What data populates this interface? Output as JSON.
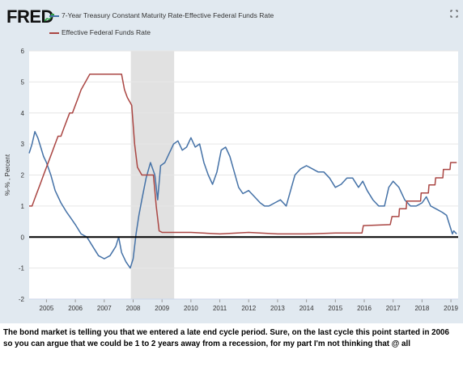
{
  "brand": {
    "logo_text": "FRED"
  },
  "legend": [
    {
      "label": "7-Year Treasury Constant Maturity Rate-Effective Federal Funds Rate",
      "color": "#4572a7"
    },
    {
      "label": "Effective Federal Funds Rate",
      "color": "#aa4643"
    }
  ],
  "icons": {
    "fullscreen": "expand-icon"
  },
  "caption": "The bond market is telling you that we entered a late end cycle period. Sure, on the last cycle this point started in 2006 so you can argue that we could be 1 to 2 years away from a recession, for my part I'm not thinking that @ all",
  "chart_data": {
    "type": "line",
    "title": "",
    "xlabel": "",
    "ylabel": "%-% , Percent",
    "xlim": [
      2004.4,
      2019.25
    ],
    "ylim": [
      -2,
      6
    ],
    "yticks": [
      -2,
      -1,
      0,
      1,
      2,
      3,
      4,
      5,
      6
    ],
    "xticks": [
      2005,
      2006,
      2007,
      2008,
      2009,
      2010,
      2011,
      2012,
      2013,
      2014,
      2015,
      2016,
      2017,
      2018,
      2019
    ],
    "zero_line": true,
    "recession_shading": [
      [
        2007.92,
        2009.42
      ]
    ],
    "grid": "horizontal",
    "series": [
      {
        "name": "7-Year Treasury Constant Maturity Rate-Effective Federal Funds Rate",
        "color": "#4572a7",
        "points": [
          [
            2004.4,
            2.7
          ],
          [
            2004.5,
            3.0
          ],
          [
            2004.6,
            3.4
          ],
          [
            2004.7,
            3.2
          ],
          [
            2004.8,
            2.9
          ],
          [
            2004.9,
            2.6
          ],
          [
            2005.0,
            2.4
          ],
          [
            2005.15,
            2.0
          ],
          [
            2005.3,
            1.5
          ],
          [
            2005.5,
            1.1
          ],
          [
            2005.7,
            0.8
          ],
          [
            2005.85,
            0.6
          ],
          [
            2006.0,
            0.4
          ],
          [
            2006.2,
            0.1
          ],
          [
            2006.4,
            0.0
          ],
          [
            2006.6,
            -0.3
          ],
          [
            2006.8,
            -0.6
          ],
          [
            2007.0,
            -0.7
          ],
          [
            2007.2,
            -0.6
          ],
          [
            2007.4,
            -0.3
          ],
          [
            2007.5,
            0.0
          ],
          [
            2007.6,
            -0.5
          ],
          [
            2007.75,
            -0.8
          ],
          [
            2007.9,
            -1.0
          ],
          [
            2008.0,
            -0.7
          ],
          [
            2008.1,
            0.1
          ],
          [
            2008.2,
            0.7
          ],
          [
            2008.3,
            1.2
          ],
          [
            2008.45,
            1.9
          ],
          [
            2008.6,
            2.4
          ],
          [
            2008.75,
            2.0
          ],
          [
            2008.85,
            1.2
          ],
          [
            2008.95,
            2.3
          ],
          [
            2009.1,
            2.4
          ],
          [
            2009.25,
            2.7
          ],
          [
            2009.4,
            3.0
          ],
          [
            2009.55,
            3.1
          ],
          [
            2009.7,
            2.8
          ],
          [
            2009.85,
            2.9
          ],
          [
            2010.0,
            3.2
          ],
          [
            2010.15,
            2.9
          ],
          [
            2010.3,
            3.0
          ],
          [
            2010.45,
            2.4
          ],
          [
            2010.6,
            2.0
          ],
          [
            2010.75,
            1.7
          ],
          [
            2010.9,
            2.1
          ],
          [
            2011.05,
            2.8
          ],
          [
            2011.2,
            2.9
          ],
          [
            2011.35,
            2.6
          ],
          [
            2011.5,
            2.1
          ],
          [
            2011.65,
            1.6
          ],
          [
            2011.8,
            1.4
          ],
          [
            2012.0,
            1.5
          ],
          [
            2012.2,
            1.3
          ],
          [
            2012.4,
            1.1
          ],
          [
            2012.55,
            1.0
          ],
          [
            2012.7,
            1.0
          ],
          [
            2012.9,
            1.1
          ],
          [
            2013.1,
            1.2
          ],
          [
            2013.3,
            1.0
          ],
          [
            2013.45,
            1.5
          ],
          [
            2013.6,
            2.0
          ],
          [
            2013.8,
            2.2
          ],
          [
            2014.0,
            2.3
          ],
          [
            2014.2,
            2.2
          ],
          [
            2014.4,
            2.1
          ],
          [
            2014.6,
            2.1
          ],
          [
            2014.8,
            1.9
          ],
          [
            2015.0,
            1.6
          ],
          [
            2015.2,
            1.7
          ],
          [
            2015.4,
            1.9
          ],
          [
            2015.6,
            1.9
          ],
          [
            2015.8,
            1.6
          ],
          [
            2015.95,
            1.8
          ],
          [
            2016.1,
            1.5
          ],
          [
            2016.3,
            1.2
          ],
          [
            2016.5,
            1.0
          ],
          [
            2016.7,
            1.0
          ],
          [
            2016.85,
            1.6
          ],
          [
            2017.0,
            1.8
          ],
          [
            2017.2,
            1.6
          ],
          [
            2017.4,
            1.2
          ],
          [
            2017.6,
            1.0
          ],
          [
            2017.8,
            1.0
          ],
          [
            2018.0,
            1.1
          ],
          [
            2018.15,
            1.3
          ],
          [
            2018.3,
            1.0
          ],
          [
            2018.5,
            0.9
          ],
          [
            2018.7,
            0.8
          ],
          [
            2018.85,
            0.7
          ],
          [
            2018.95,
            0.4
          ],
          [
            2019.05,
            0.1
          ],
          [
            2019.1,
            0.2
          ],
          [
            2019.2,
            0.1
          ]
        ]
      },
      {
        "name": "Effective Federal Funds Rate",
        "color": "#aa4643",
        "points": [
          [
            2004.4,
            1.0
          ],
          [
            2004.5,
            1.0
          ],
          [
            2004.6,
            1.25
          ],
          [
            2004.7,
            1.5
          ],
          [
            2004.8,
            1.75
          ],
          [
            2004.9,
            2.0
          ],
          [
            2005.0,
            2.25
          ],
          [
            2005.1,
            2.5
          ],
          [
            2005.2,
            2.75
          ],
          [
            2005.3,
            3.0
          ],
          [
            2005.4,
            3.25
          ],
          [
            2005.5,
            3.25
          ],
          [
            2005.6,
            3.5
          ],
          [
            2005.7,
            3.75
          ],
          [
            2005.8,
            4.0
          ],
          [
            2005.9,
            4.0
          ],
          [
            2006.0,
            4.25
          ],
          [
            2006.1,
            4.5
          ],
          [
            2006.2,
            4.75
          ],
          [
            2006.35,
            5.0
          ],
          [
            2006.5,
            5.25
          ],
          [
            2007.0,
            5.25
          ],
          [
            2007.5,
            5.25
          ],
          [
            2007.6,
            5.25
          ],
          [
            2007.7,
            4.75
          ],
          [
            2007.8,
            4.5
          ],
          [
            2007.95,
            4.25
          ],
          [
            2008.05,
            3.0
          ],
          [
            2008.15,
            2.25
          ],
          [
            2008.3,
            2.0
          ],
          [
            2008.7,
            2.0
          ],
          [
            2008.75,
            1.5
          ],
          [
            2008.8,
            1.0
          ],
          [
            2008.9,
            0.2
          ],
          [
            2009.0,
            0.15
          ],
          [
            2010.0,
            0.15
          ],
          [
            2011.0,
            0.1
          ],
          [
            2012.0,
            0.15
          ],
          [
            2013.0,
            0.1
          ],
          [
            2014.0,
            0.1
          ],
          [
            2015.0,
            0.13
          ],
          [
            2015.92,
            0.13
          ],
          [
            2015.97,
            0.37
          ],
          [
            2016.9,
            0.4
          ],
          [
            2016.96,
            0.66
          ],
          [
            2017.2,
            0.66
          ],
          [
            2017.22,
            0.91
          ],
          [
            2017.45,
            0.91
          ],
          [
            2017.47,
            1.16
          ],
          [
            2017.95,
            1.16
          ],
          [
            2017.97,
            1.42
          ],
          [
            2018.22,
            1.42
          ],
          [
            2018.24,
            1.68
          ],
          [
            2018.45,
            1.68
          ],
          [
            2018.47,
            1.91
          ],
          [
            2018.72,
            1.91
          ],
          [
            2018.74,
            2.18
          ],
          [
            2018.97,
            2.18
          ],
          [
            2018.99,
            2.4
          ],
          [
            2019.2,
            2.4
          ]
        ]
      }
    ]
  }
}
